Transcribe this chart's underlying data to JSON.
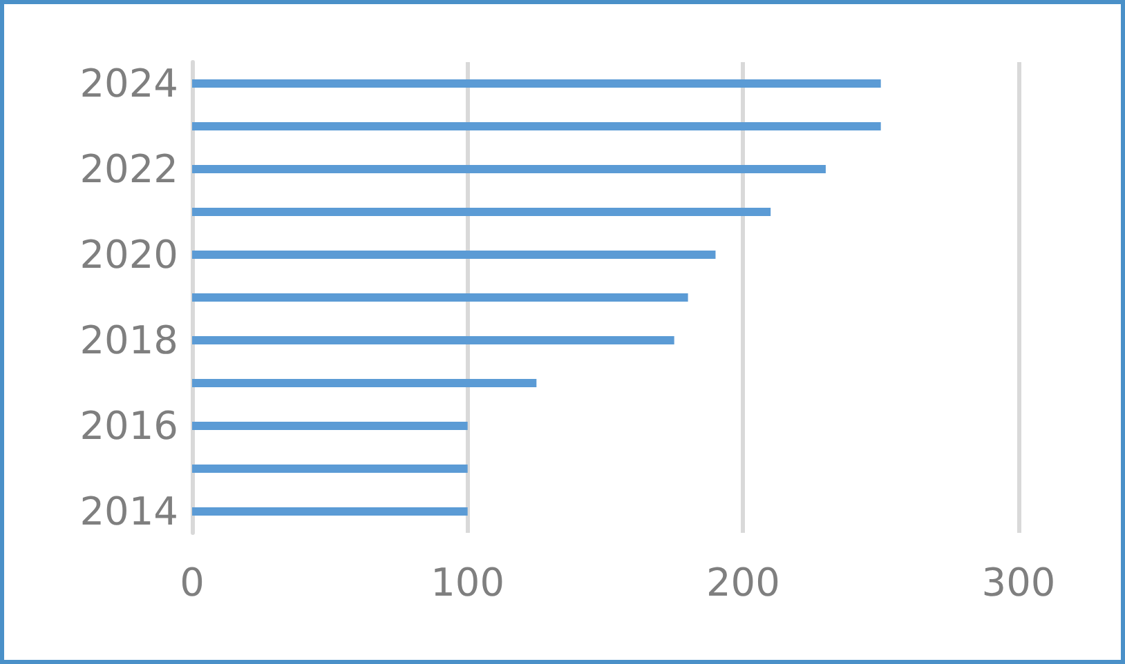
{
  "chart_data": {
    "type": "bar",
    "orientation": "horizontal",
    "categories": [
      "2024",
      null,
      "2022",
      null,
      "2020",
      null,
      "2018",
      null,
      "2016",
      null,
      "2014"
    ],
    "values": [
      250,
      250,
      230,
      210,
      190,
      180,
      175,
      125,
      100,
      100,
      100
    ],
    "color": "#5b9bd5",
    "xlim": [
      0,
      300
    ],
    "xticks": [
      0,
      100,
      200,
      300
    ],
    "grid": "x"
  }
}
